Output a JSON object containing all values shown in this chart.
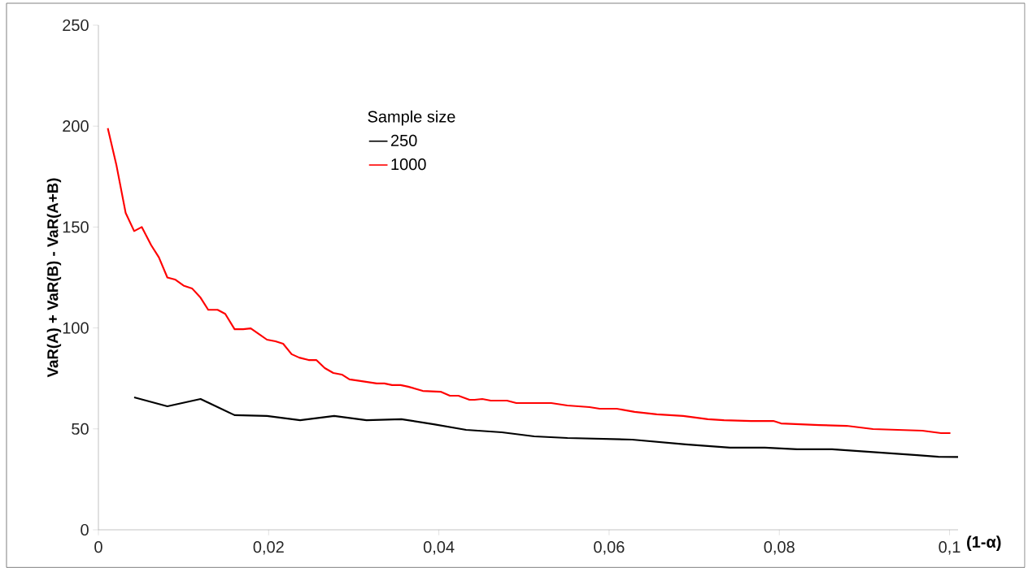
{
  "chart_data": {
    "type": "line",
    "xlabel": "(1-α)",
    "ylabel": "VaR(A) + VaR(B) - VaR(A+B)",
    "legend_title": "Sample size",
    "xlim": [
      0,
      0.101
    ],
    "ylim": [
      0,
      250
    ],
    "xticks": [
      0,
      {
        "value": 0.02,
        "label": "0,02"
      },
      {
        "value": 0.04,
        "label": "0,04"
      },
      {
        "value": 0.06,
        "label": "0,06"
      },
      {
        "value": 0.08,
        "label": "0,08"
      },
      {
        "value": 0.1,
        "label": "0,1"
      }
    ],
    "yticks": [
      0,
      50,
      100,
      150,
      200,
      250
    ],
    "grid": false,
    "legend": "top left",
    "line_style": "solid",
    "marker": "none",
    "series": [
      {
        "name": "250",
        "color": "#000000",
        "x": [
          0.0042,
          0.0081,
          0.012,
          0.016,
          0.0198,
          0.0237,
          0.0277,
          0.0315,
          0.0356,
          0.0394,
          0.0432,
          0.0474,
          0.0512,
          0.0551,
          0.0627,
          0.069,
          0.0742,
          0.0783,
          0.0821,
          0.0862,
          0.0962,
          0.0987,
          0.101
        ],
        "values": [
          65.6,
          61.2,
          64.8,
          56.8,
          56.4,
          54.3,
          56.4,
          54.3,
          54.8,
          52.3,
          49.5,
          48.3,
          46.3,
          45.5,
          44.7,
          42.3,
          40.7,
          40.7,
          39.9,
          39.9,
          37.0,
          36.2,
          36.1
        ]
      },
      {
        "name": "1000",
        "color": "#ff0000",
        "x": [
          0.0011,
          0.0021,
          0.0032,
          0.0042,
          0.0051,
          0.0062,
          0.0071,
          0.0081,
          0.009,
          0.01,
          0.011,
          0.012,
          0.0129,
          0.014,
          0.0149,
          0.016,
          0.017,
          0.0179,
          0.019,
          0.0198,
          0.0208,
          0.0217,
          0.0227,
          0.0236,
          0.0247,
          0.0256,
          0.0266,
          0.0276,
          0.0286,
          0.0295,
          0.0308,
          0.0327,
          0.0336,
          0.0345,
          0.0355,
          0.0364,
          0.0381,
          0.0402,
          0.0413,
          0.0423,
          0.0436,
          0.0442,
          0.0451,
          0.0461,
          0.048,
          0.0491,
          0.0532,
          0.0551,
          0.0577,
          0.0589,
          0.0609,
          0.063,
          0.0656,
          0.0687,
          0.0716,
          0.0735,
          0.0767,
          0.0793,
          0.0802,
          0.0847,
          0.0879,
          0.091,
          0.0968,
          0.099,
          0.1001
        ],
        "values": [
          199,
          181,
          157,
          148,
          150,
          141,
          135,
          125,
          124,
          121,
          119.6,
          115,
          109,
          109,
          107,
          99.4,
          99.4,
          99.8,
          96.6,
          94.2,
          93.4,
          92.2,
          87,
          85.3,
          84.1,
          84.1,
          80.1,
          77.7,
          76.9,
          74.5,
          73.7,
          72.5,
          72.5,
          71.7,
          71.7,
          70.9,
          68.8,
          68.4,
          66.4,
          66.4,
          64.4,
          64.4,
          64.8,
          64,
          64,
          62.8,
          62.8,
          61.6,
          60.8,
          60,
          60,
          58.4,
          57.2,
          56.4,
          54.8,
          54.3,
          53.9,
          53.9,
          52.7,
          51.9,
          51.5,
          49.9,
          49.1,
          47.9,
          47.9
        ]
      }
    ]
  }
}
